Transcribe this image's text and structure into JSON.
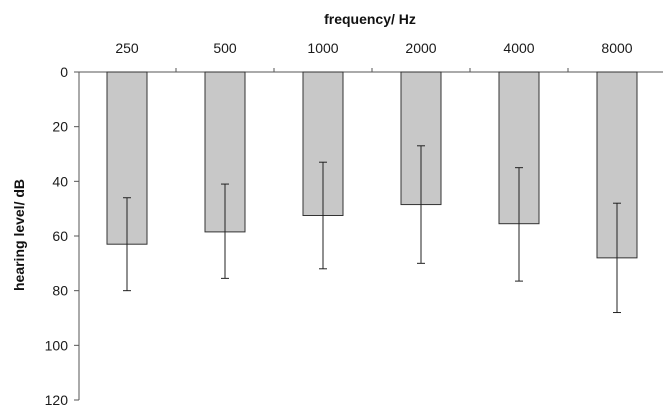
{
  "chart_data": {
    "type": "bar",
    "title": "",
    "xlabel": "frequency/ Hz",
    "ylabel": "hearing level/ dB",
    "categories": [
      "250",
      "500",
      "1000",
      "2000",
      "4000",
      "8000"
    ],
    "series": [
      {
        "values": [
          63,
          58.5,
          52.5,
          48.5,
          55.5,
          68
        ],
        "error_low": [
          46,
          41,
          33,
          27,
          35,
          48
        ],
        "error_high": [
          80,
          75.5,
          72,
          70,
          76.5,
          88
        ]
      }
    ],
    "ylim": [
      0,
      120
    ],
    "y_inverted": true,
    "yticks": [
      0,
      20,
      40,
      60,
      80,
      100,
      120
    ],
    "x_axis_position": "top",
    "grid": false,
    "legend": "none"
  },
  "colors": {
    "bar_fill": "#c8c8c8",
    "bar_stroke": "#333333",
    "axis": "#555555",
    "error_bar": "#222222"
  }
}
